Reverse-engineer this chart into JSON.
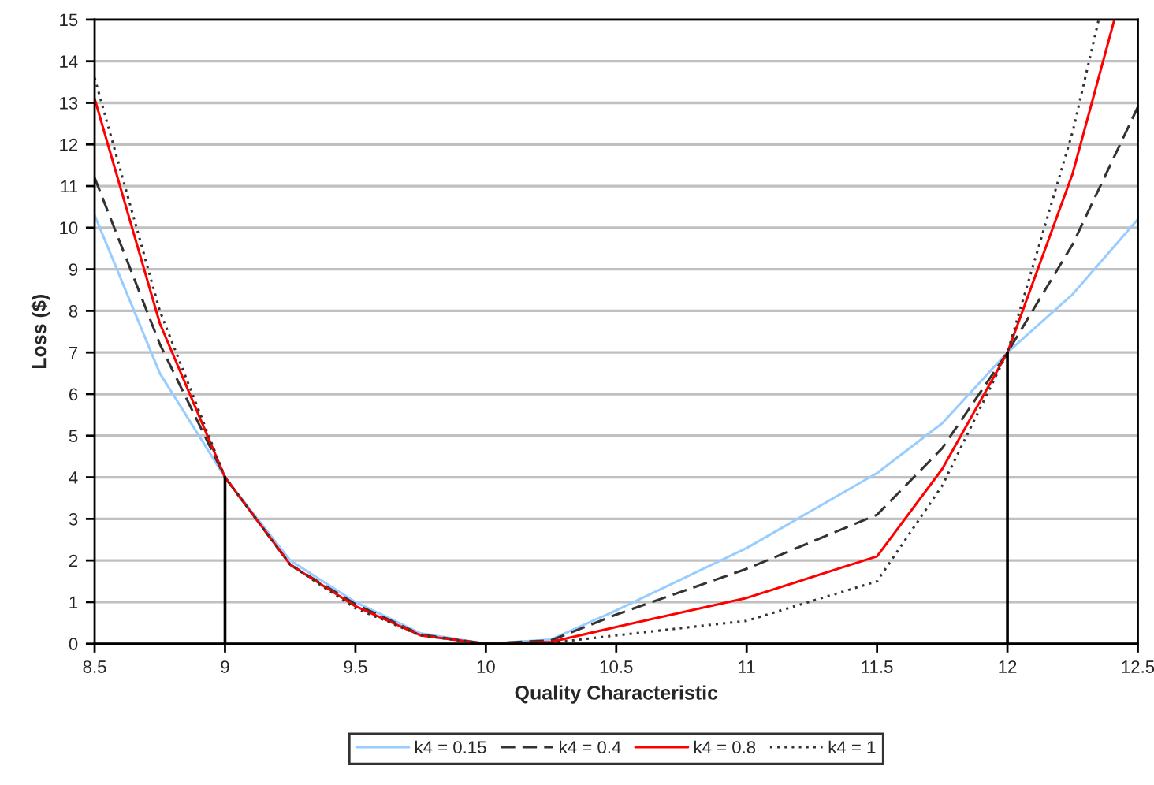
{
  "chart_data": {
    "type": "line",
    "xlabel": "Quality Characteristic",
    "ylabel": "Loss ($)",
    "xlim": [
      8.5,
      12.5
    ],
    "ylim": [
      0,
      15
    ],
    "xticks": [
      8.5,
      9,
      9.5,
      10,
      10.5,
      11,
      11.5,
      12,
      12.5
    ],
    "yticks": [
      0,
      1,
      2,
      3,
      4,
      5,
      6,
      7,
      8,
      9,
      10,
      11,
      12,
      13,
      14,
      15
    ],
    "grid": "y",
    "legend": "bottom",
    "marker": "none",
    "series": [
      {
        "name": "k4 = 0.15",
        "color": "#99ccff",
        "line_style": "solid",
        "x": [
          8.5,
          8.75,
          9,
          9.25,
          9.5,
          9.75,
          10,
          10.25,
          10.5,
          11,
          11.5,
          11.75,
          12,
          12.25,
          12.5
        ],
        "values": [
          10.3,
          6.5,
          4,
          2.0,
          1.0,
          0.25,
          0,
          0.1,
          0.8,
          2.3,
          4.1,
          5.3,
          7,
          8.4,
          10.2
        ]
      },
      {
        "name": "k4 = 0.4",
        "color": "#333333",
        "line_style": "dashed",
        "x": [
          8.5,
          8.75,
          9,
          9.25,
          9.5,
          9.75,
          10,
          10.25,
          10.5,
          11,
          11.5,
          11.75,
          12,
          12.25,
          12.5
        ],
        "values": [
          11.2,
          7.2,
          4,
          1.9,
          0.95,
          0.22,
          0,
          0.08,
          0.7,
          1.8,
          3.1,
          4.7,
          7,
          9.6,
          12.9
        ]
      },
      {
        "name": "k4 = 0.8",
        "color": "#ff0000",
        "line_style": "solid",
        "x": [
          8.5,
          8.75,
          9,
          9.25,
          9.5,
          9.75,
          10,
          10.25,
          10.5,
          11,
          11.5,
          11.75,
          12,
          12.25,
          12.41
        ],
        "values": [
          13.1,
          7.7,
          4,
          1.9,
          0.9,
          0.2,
          0,
          0.04,
          0.4,
          1.1,
          2.1,
          4.2,
          7,
          11.3,
          15
        ]
      },
      {
        "name": "k4 = 1",
        "color": "#333333",
        "line_style": "dotted",
        "x": [
          8.5,
          8.75,
          9,
          9.25,
          9.5,
          9.75,
          10,
          10.25,
          10.5,
          11,
          11.5,
          11.75,
          12,
          12.25,
          12.35
        ],
        "values": [
          13.6,
          8.0,
          4,
          1.9,
          0.85,
          0.2,
          0,
          0.02,
          0.2,
          0.55,
          1.5,
          3.8,
          7,
          12.3,
          15
        ]
      },
      {
        "color": "#000000",
        "line_style": "solid",
        "x": [
          9,
          9
        ],
        "values": [
          0,
          4
        ]
      },
      {
        "color": "#000000",
        "line_style": "solid",
        "x": [
          12,
          12
        ],
        "values": [
          0,
          7
        ]
      }
    ]
  }
}
